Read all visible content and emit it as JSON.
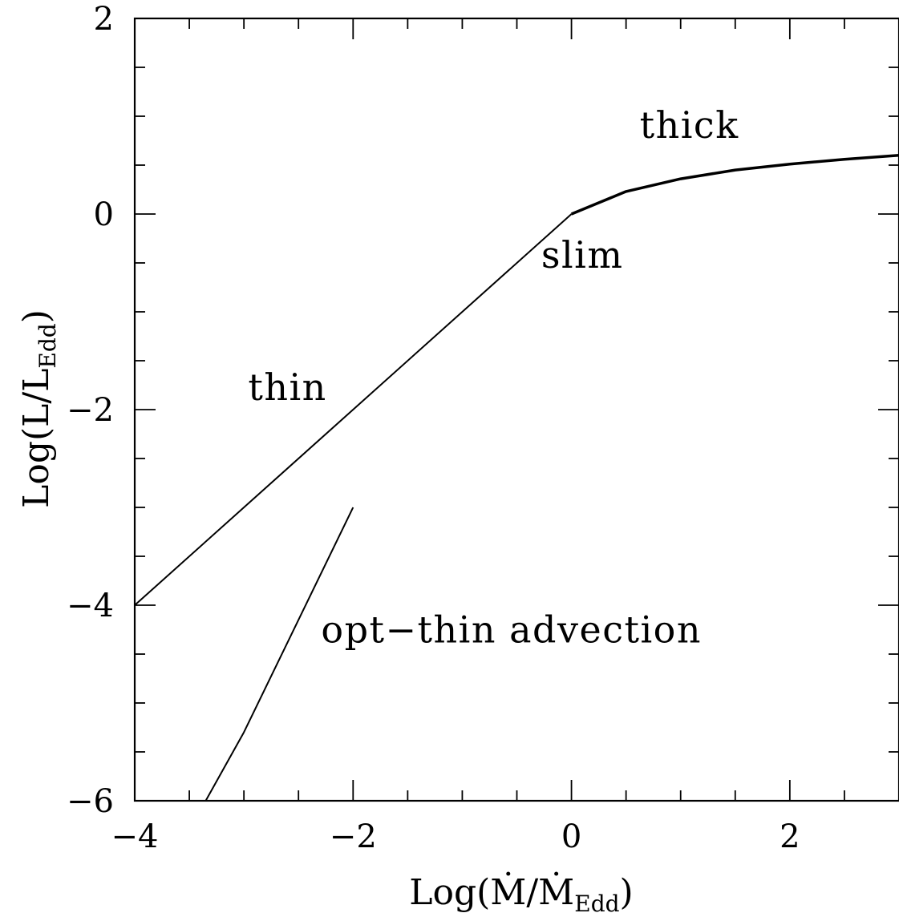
{
  "chart_data": {
    "type": "line",
    "xlabel": {
      "main": "Log(Ṁ/Ṁ",
      "sub": "Edd",
      "close": ")"
    },
    "ylabel": {
      "main": "Log(L/L",
      "sub": "Edd",
      "close": ")"
    },
    "xlim": [
      -4,
      3
    ],
    "ylim": [
      -6,
      2
    ],
    "x_ticks": [
      -4,
      -2,
      0,
      2
    ],
    "x_tick_labels": [
      "−4",
      "−2",
      "0",
      "2"
    ],
    "y_ticks": [
      -6,
      -4,
      -2,
      0,
      2
    ],
    "y_tick_labels": [
      "−6",
      "−4",
      "−2",
      "0",
      "2"
    ],
    "x_minor_step": 0.5,
    "y_minor_step": 0.5,
    "grid": false,
    "legend": "none",
    "series": [
      {
        "x": [
          -4,
          0
        ],
        "y": [
          -4,
          0
        ],
        "stroke_width": 2
      },
      {
        "x": [
          0,
          0.5,
          1,
          1.5,
          2,
          2.5,
          3
        ],
        "y": [
          0,
          0.23,
          0.36,
          0.45,
          0.51,
          0.56,
          0.6
        ],
        "stroke_width": 3.5
      },
      {
        "x": [
          -3.35,
          -3,
          -2
        ],
        "y": [
          -6,
          -5.3,
          -3
        ],
        "stroke_width": 2
      }
    ],
    "annotations": [
      {
        "text": "thick",
        "x": 1.08,
        "y": 0.78
      },
      {
        "text": "slim",
        "x": 0.1,
        "y": -0.55
      },
      {
        "text": "thin",
        "x": -2.6,
        "y": -1.9
      },
      {
        "text": "opt−thin advection",
        "x": -0.55,
        "y": -4.38
      }
    ]
  }
}
